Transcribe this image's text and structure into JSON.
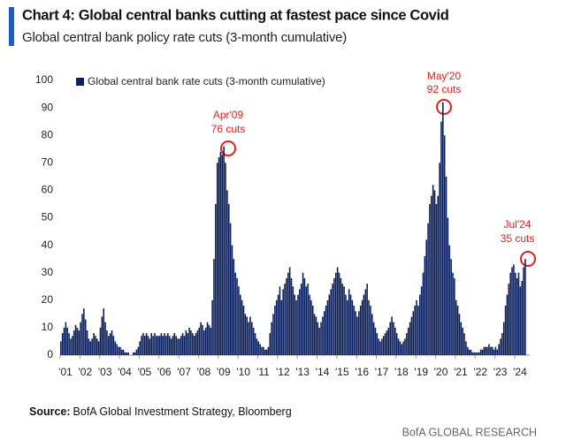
{
  "chart_data": {
    "type": "bar",
    "title": "Chart 4: Global central banks cutting at fastest pace since Covid",
    "subtitle": "Global central bank policy rate cuts (3-month cumulative)",
    "source_label": "Source:",
    "source": "BofA Global Investment Strategy, Bloomberg",
    "publisher": "BofA GLOBAL RESEARCH",
    "annotations": [
      [
        "Apr'09",
        "76 cuts"
      ],
      [
        "May'20",
        "92 cuts"
      ],
      [
        "Jul'24",
        "35 cuts"
      ]
    ],
    "ylim": [
      0,
      100
    ],
    "yticks": [
      0,
      10,
      20,
      30,
      40,
      50,
      60,
      70,
      80,
      90,
      100
    ],
    "categories": [
      "'01",
      null,
      null,
      null,
      null,
      null,
      null,
      null,
      null,
      null,
      null,
      null,
      "'02",
      null,
      null,
      null,
      null,
      null,
      null,
      null,
      null,
      null,
      null,
      null,
      "'03",
      null,
      null,
      null,
      null,
      null,
      null,
      null,
      null,
      null,
      null,
      null,
      "'04",
      null,
      null,
      null,
      null,
      null,
      null,
      null,
      null,
      null,
      null,
      null,
      "'05",
      null,
      null,
      null,
      null,
      null,
      null,
      null,
      null,
      null,
      null,
      null,
      "'06",
      null,
      null,
      null,
      null,
      null,
      null,
      null,
      null,
      null,
      null,
      null,
      "'07",
      null,
      null,
      null,
      null,
      null,
      null,
      null,
      null,
      null,
      null,
      null,
      "'08",
      null,
      null,
      null,
      null,
      null,
      null,
      null,
      null,
      null,
      null,
      null,
      "'09",
      null,
      null,
      null,
      null,
      null,
      null,
      null,
      null,
      null,
      null,
      null,
      "'10",
      null,
      null,
      null,
      null,
      null,
      null,
      null,
      null,
      null,
      null,
      null,
      "'11",
      null,
      null,
      null,
      null,
      null,
      null,
      null,
      null,
      null,
      null,
      null,
      "'12",
      null,
      null,
      null,
      null,
      null,
      null,
      null,
      null,
      null,
      null,
      null,
      "'13",
      null,
      null,
      null,
      null,
      null,
      null,
      null,
      null,
      null,
      null,
      null,
      "'14",
      null,
      null,
      null,
      null,
      null,
      null,
      null,
      null,
      null,
      null,
      null,
      "'15",
      null,
      null,
      null,
      null,
      null,
      null,
      null,
      null,
      null,
      null,
      null,
      "'16",
      null,
      null,
      null,
      null,
      null,
      null,
      null,
      null,
      null,
      null,
      null,
      "'17",
      null,
      null,
      null,
      null,
      null,
      null,
      null,
      null,
      null,
      null,
      null,
      "'18",
      null,
      null,
      null,
      null,
      null,
      null,
      null,
      null,
      null,
      null,
      null,
      "'19",
      null,
      null,
      null,
      null,
      null,
      null,
      null,
      null,
      null,
      null,
      null,
      "'20",
      null,
      null,
      null,
      null,
      null,
      null,
      null,
      null,
      null,
      null,
      null,
      "'21",
      null,
      null,
      null,
      null,
      null,
      null,
      null,
      null,
      null,
      null,
      null,
      "'22",
      null,
      null,
      null,
      null,
      null,
      null,
      null,
      null,
      null,
      null,
      null,
      "'23",
      null,
      null,
      null,
      null,
      null,
      null,
      null,
      null,
      null,
      null,
      null,
      "'24",
      null,
      null,
      null,
      null,
      null,
      null
    ],
    "series": [
      {
        "name": "Global central bank rate cuts (3-month cumulative)",
        "color": "#0b1f5e",
        "values": [
          5,
          8,
          10,
          12,
          10,
          8,
          6,
          7,
          9,
          11,
          10,
          9,
          12,
          15,
          17,
          13,
          9,
          6,
          5,
          6,
          8,
          7,
          6,
          5,
          10,
          14,
          17,
          12,
          9,
          7,
          8,
          9,
          7,
          5,
          4,
          3,
          3,
          2,
          2,
          1,
          1,
          1,
          0,
          0,
          1,
          1,
          2,
          3,
          5,
          7,
          8,
          7,
          8,
          7,
          6,
          8,
          7,
          8,
          7,
          7,
          7,
          8,
          7,
          8,
          7,
          8,
          7,
          6,
          7,
          8,
          7,
          6,
          6,
          7,
          8,
          7,
          9,
          8,
          10,
          9,
          8,
          7,
          8,
          9,
          10,
          12,
          11,
          9,
          10,
          12,
          11,
          10,
          20,
          35,
          55,
          70,
          72,
          74,
          73,
          76,
          70,
          60,
          55,
          48,
          40,
          35,
          30,
          28,
          25,
          22,
          20,
          18,
          15,
          14,
          12,
          14,
          12,
          10,
          8,
          6,
          5,
          4,
          3,
          3,
          2,
          2,
          3,
          8,
          12,
          15,
          18,
          20,
          22,
          25,
          20,
          24,
          26,
          28,
          30,
          32,
          28,
          25,
          22,
          20,
          22,
          24,
          26,
          30,
          28,
          25,
          26,
          22,
          20,
          18,
          15,
          14,
          12,
          10,
          12,
          14,
          16,
          18,
          20,
          22,
          24,
          26,
          28,
          30,
          32,
          30,
          28,
          26,
          25,
          22,
          20,
          24,
          22,
          20,
          18,
          16,
          14,
          16,
          18,
          20,
          22,
          24,
          26,
          20,
          18,
          15,
          12,
          10,
          8,
          6,
          5,
          6,
          7,
          8,
          9,
          10,
          12,
          14,
          12,
          10,
          8,
          6,
          5,
          4,
          5,
          6,
          8,
          10,
          12,
          14,
          16,
          18,
          20,
          18,
          22,
          25,
          30,
          36,
          42,
          48,
          55,
          58,
          62,
          60,
          55,
          58,
          70,
          85,
          92,
          80,
          65,
          50,
          40,
          35,
          30,
          28,
          20,
          18,
          15,
          12,
          10,
          8,
          5,
          3,
          2,
          2,
          1,
          1,
          1,
          1,
          1,
          2,
          2,
          3,
          3,
          3,
          4,
          3,
          3,
          2,
          3,
          2,
          4,
          6,
          8,
          12,
          18,
          22,
          26,
          30,
          32,
          33,
          30,
          28,
          30,
          25,
          27,
          32,
          35
        ]
      }
    ]
  }
}
